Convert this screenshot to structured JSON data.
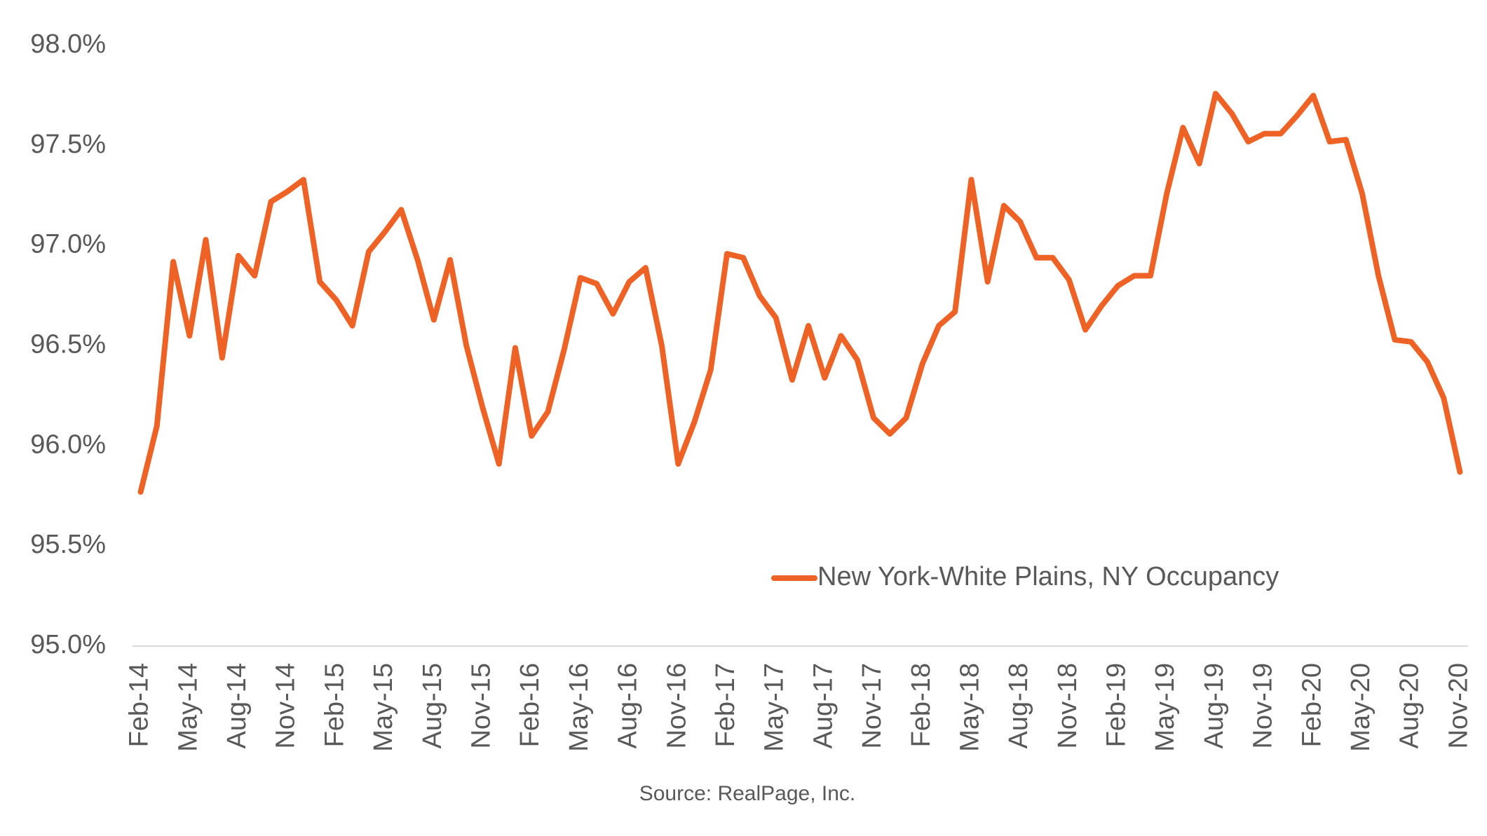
{
  "chart_data": {
    "type": "line",
    "source": "Source: RealPage, Inc.",
    "categories": [
      "Feb-14",
      null,
      null,
      "May-14",
      null,
      null,
      "Aug-14",
      null,
      null,
      "Nov-14",
      null,
      null,
      "Feb-15",
      null,
      null,
      "May-15",
      null,
      null,
      "Aug-15",
      null,
      null,
      "Nov-15",
      null,
      null,
      "Feb-16",
      null,
      null,
      "May-16",
      null,
      null,
      "Aug-16",
      null,
      null,
      "Nov-16",
      null,
      null,
      "Feb-17",
      null,
      null,
      "May-17",
      null,
      null,
      "Aug-17",
      null,
      null,
      "Nov-17",
      null,
      null,
      "Feb-18",
      null,
      null,
      "May-18",
      null,
      null,
      "Aug-18",
      null,
      null,
      "Nov-18",
      null,
      null,
      "Feb-19",
      null,
      null,
      "May-19",
      null,
      null,
      "Aug-19",
      null,
      null,
      "Nov-19",
      null,
      null,
      "Feb-20",
      null,
      null,
      "May-20",
      null,
      null,
      "Aug-20",
      null,
      null,
      "Nov-20"
    ],
    "series": [
      {
        "name": "New York-White Plains, NY Occupancy",
        "color": "#ee6325",
        "values": [
          95.77,
          96.1,
          96.92,
          96.55,
          97.03,
          96.44,
          96.95,
          96.85,
          97.22,
          97.27,
          97.33,
          96.82,
          96.73,
          96.6,
          96.97,
          97.07,
          97.18,
          96.93,
          96.63,
          96.93,
          96.5,
          96.19,
          95.91,
          96.49,
          96.05,
          96.17,
          96.48,
          96.84,
          96.81,
          96.66,
          96.82,
          96.89,
          96.5,
          95.91,
          96.12,
          96.38,
          96.96,
          96.94,
          96.75,
          96.64,
          96.33,
          96.6,
          96.34,
          96.55,
          96.43,
          96.14,
          96.06,
          96.14,
          96.41,
          96.6,
          96.67,
          97.33,
          96.82,
          97.2,
          97.12,
          96.94,
          96.94,
          96.83,
          96.58,
          96.7,
          96.8,
          96.85,
          96.85,
          97.26,
          97.59,
          97.41,
          97.76,
          97.66,
          97.52,
          97.56,
          97.56,
          97.65,
          97.75,
          97.52,
          97.53,
          97.26,
          96.85,
          96.53,
          96.52,
          96.42,
          96.24,
          95.87
        ]
      }
    ],
    "ylim": [
      95.0,
      98.0
    ],
    "yticks": [
      {
        "value": 95.0,
        "label": "95.0%"
      },
      {
        "value": 95.5,
        "label": "95.5%"
      },
      {
        "value": 96.0,
        "label": "96.0%"
      },
      {
        "value": 96.5,
        "label": "96.5%"
      },
      {
        "value": 97.0,
        "label": "97.0%"
      },
      {
        "value": 97.5,
        "label": "97.5%"
      },
      {
        "value": 98.0,
        "label": "98.0%"
      }
    ],
    "grid": false
  }
}
